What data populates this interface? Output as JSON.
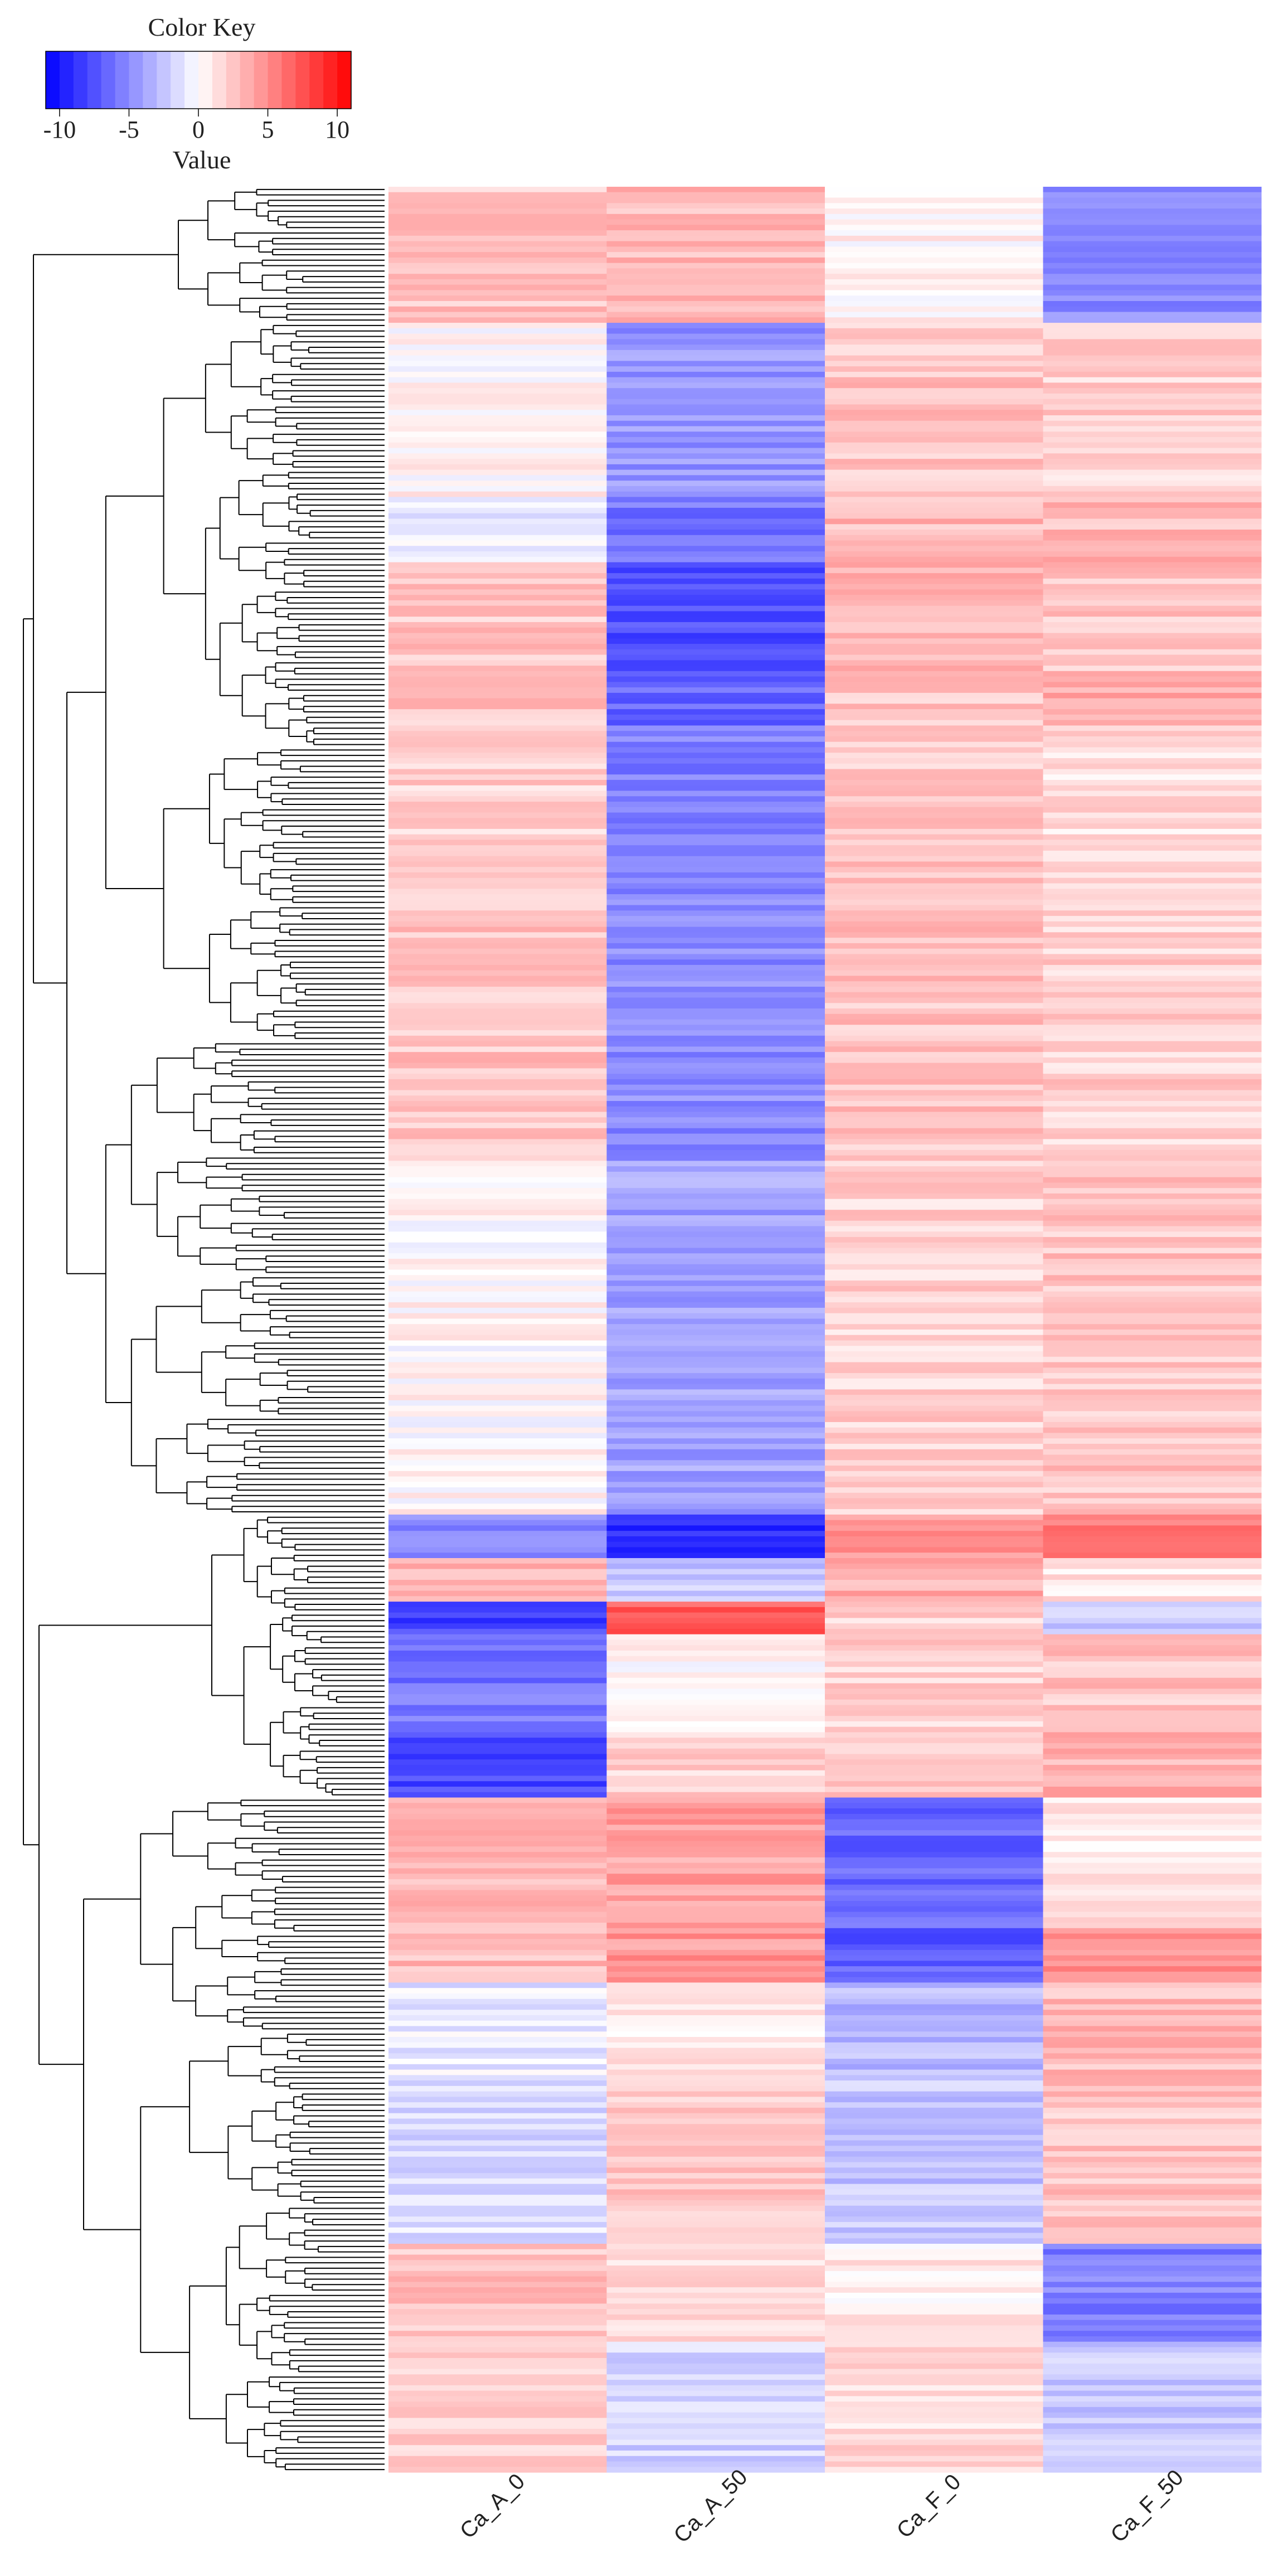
{
  "colors": {
    "negative": "#0000ff",
    "neutral": "#ffffff",
    "positive": "#ff0000",
    "line": "#000000"
  },
  "chart_data": {
    "type": "heatmap",
    "color_key": {
      "title": "Color Key",
      "xlabel": "Value",
      "range": [
        -11,
        11
      ],
      "ticks": [
        -10,
        -5,
        0,
        5,
        10
      ],
      "tick_labels": [
        "-10",
        "-5",
        "0",
        "5",
        "10"
      ],
      "placement": "top-left"
    },
    "columns": [
      "Ca_A_0",
      "Ca_A_50",
      "Ca_F_0",
      "Ca_F_50"
    ],
    "row_dendrogram": true,
    "total_rows": 420,
    "blocks": [
      {
        "rows": 25,
        "values": [
          2.5,
          3.0,
          0.5,
          -5.0
        ]
      },
      {
        "rows": 32,
        "values": [
          0.3,
          -4.5,
          2.5,
          2.0
        ]
      },
      {
        "rows": 12,
        "values": [
          -1.0,
          -6.0,
          3.0,
          3.0
        ]
      },
      {
        "rows": 20,
        "values": [
          2.5,
          -7.5,
          3.0,
          2.5
        ]
      },
      {
        "rows": 10,
        "values": [
          2.5,
          -6.5,
          2.5,
          3.5
        ]
      },
      {
        "rows": 25,
        "values": [
          2.0,
          -5.5,
          2.5,
          1.5
        ]
      },
      {
        "rows": 55,
        "values": [
          2.5,
          -5.0,
          2.5,
          2.0
        ]
      },
      {
        "rows": 65,
        "values": [
          0.3,
          -4.0,
          2.0,
          2.5
        ]
      },
      {
        "rows": 8,
        "values": [
          -5.0,
          -9.0,
          4.5,
          5.5
        ]
      },
      {
        "rows": 8,
        "values": [
          3.5,
          -2.5,
          3.5,
          1.0
        ]
      },
      {
        "rows": 6,
        "values": [
          -8.0,
          7.0,
          2.0,
          -2.0
        ]
      },
      {
        "rows": 18,
        "values": [
          -6.0,
          0.5,
          2.0,
          2.5
        ]
      },
      {
        "rows": 12,
        "values": [
          -8.0,
          2.0,
          2.5,
          3.5
        ]
      },
      {
        "rows": 24,
        "values": [
          3.0,
          4.0,
          -6.5,
          1.0
        ]
      },
      {
        "rows": 10,
        "values": [
          3.0,
          4.5,
          -7.0,
          4.5
        ]
      },
      {
        "rows": 18,
        "values": [
          -1.0,
          1.0,
          -3.0,
          3.0
        ]
      },
      {
        "rows": 30,
        "values": [
          -1.5,
          2.5,
          -2.5,
          2.5
        ]
      },
      {
        "rows": 18,
        "values": [
          2.5,
          1.5,
          1.0,
          -5.5
        ]
      },
      {
        "rows": 24,
        "values": [
          2.0,
          -2.0,
          1.5,
          -2.5
        ]
      }
    ]
  }
}
